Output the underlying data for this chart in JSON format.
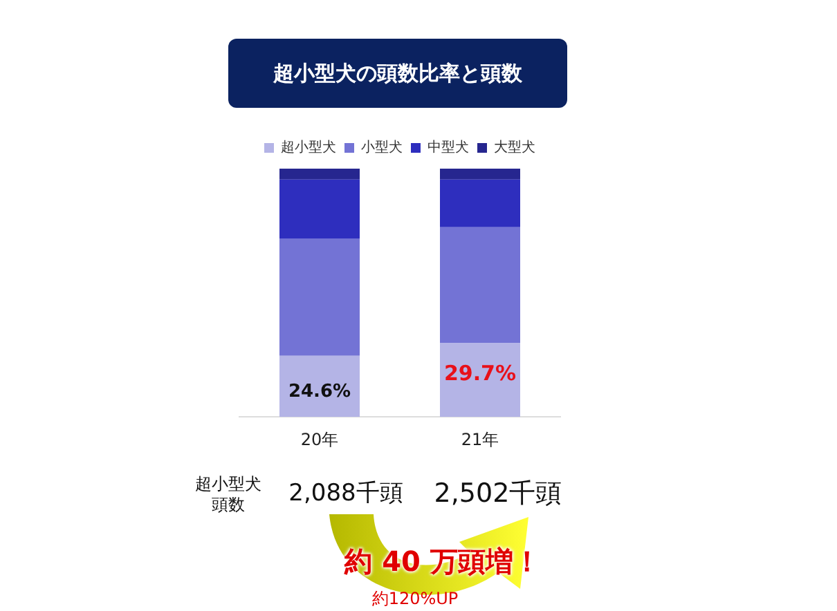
{
  "chart_data": {
    "type": "bar",
    "title": "超小型犬の頭数比率と頭数",
    "stacked": true,
    "legend": "top",
    "ylim": [
      0,
      100
    ],
    "categories": [
      "20年",
      "21年"
    ],
    "series": [
      {
        "name": "超小型犬",
        "color": "#b4b4e6",
        "values": [
          24.6,
          29.7
        ],
        "value_labels": [
          "24.6%",
          "29.7%"
        ]
      },
      {
        "name": "小型犬",
        "color": "#7373d5",
        "values": [
          47.3,
          46.7
        ]
      },
      {
        "name": "中型犬",
        "color": "#2e2ebe",
        "values": [
          23.7,
          19.2
        ]
      },
      {
        "name": "大型犬",
        "color": "#26268f",
        "values": [
          4.4,
          4.6
        ]
      }
    ],
    "annotations": [
      "超小型犬",
      "頭数",
      "2,088千頭",
      "2,502千頭",
      "約 40 万頭増！",
      "約120%UP"
    ]
  }
}
